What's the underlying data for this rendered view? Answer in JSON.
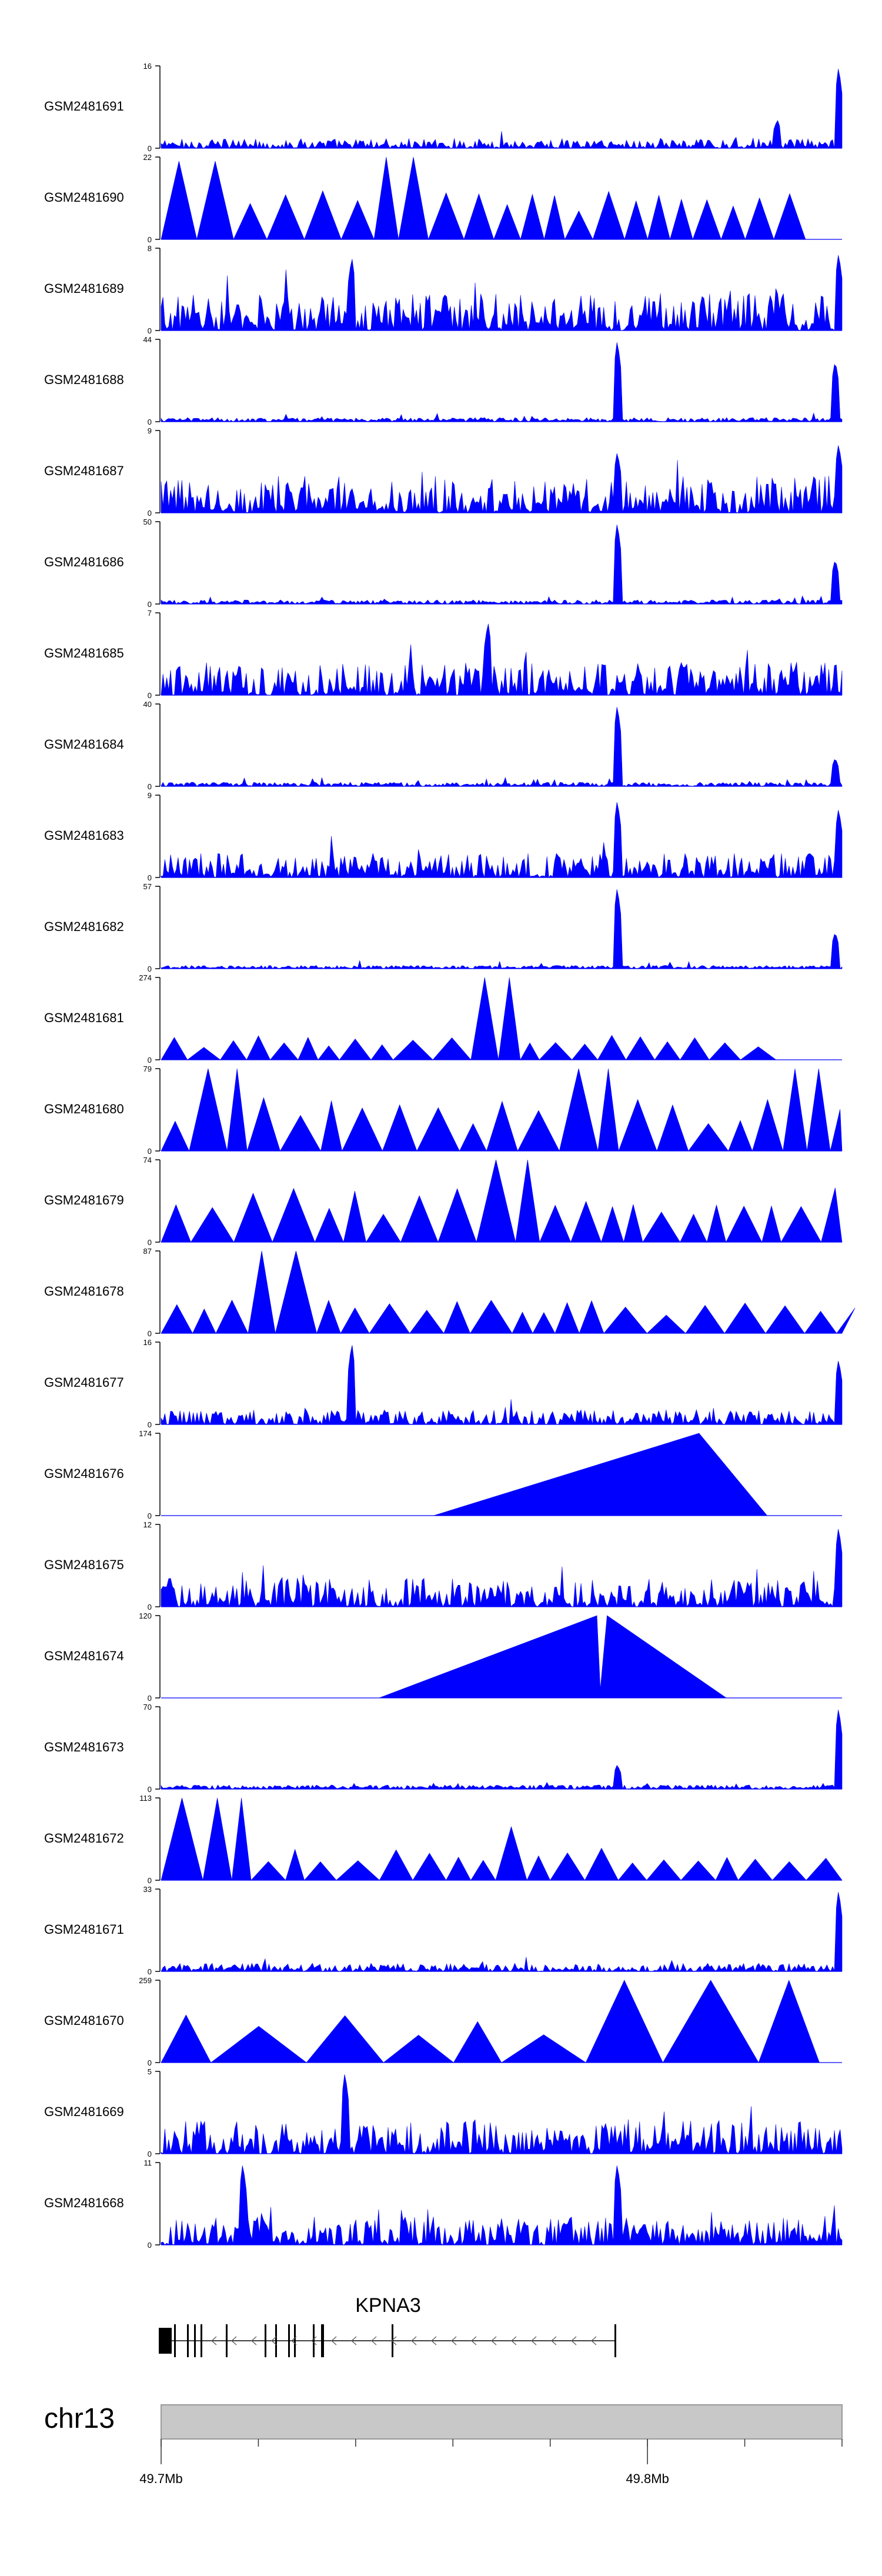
{
  "chart_data": {
    "type": "area",
    "chromosome": "chr13",
    "genomic_axis": {
      "range_mb": [
        49.7,
        49.84
      ],
      "tick_labels": [
        "49.7Mb",
        "49.8Mb"
      ],
      "tick_values_mb": [
        49.7,
        49.8
      ]
    },
    "tracks": [
      {
        "label": "GSM2481691",
        "ymax": 16,
        "ymin_label": "0",
        "pattern": "dense_noise",
        "level": 0.12,
        "peaks": [
          [
            0.905,
            0.35
          ],
          [
            0.995,
            1.0
          ]
        ]
      },
      {
        "label": "GSM2481690",
        "ymax": 22,
        "ymin_label": "0",
        "pattern": "triangles",
        "level": 0.5,
        "peaks": [
          [
            0.06,
            0.95
          ],
          [
            0.36,
            1.0
          ]
        ]
      },
      {
        "label": "GSM2481689",
        "ymax": 8,
        "ymin_label": "0",
        "pattern": "dense_noise",
        "level": 0.45,
        "peaks": [
          [
            0.28,
            0.9
          ],
          [
            0.995,
            0.95
          ]
        ]
      },
      {
        "label": "GSM2481688",
        "ymax": 44,
        "ymin_label": "0",
        "pattern": "sparse_noise",
        "level": 0.05,
        "peaks": [
          [
            0.67,
            1.0
          ],
          [
            0.99,
            0.75
          ]
        ]
      },
      {
        "label": "GSM2481687",
        "ymax": 9,
        "ymin_label": "0",
        "pattern": "dense_noise",
        "level": 0.45,
        "peaks": [
          [
            0.67,
            0.75
          ],
          [
            0.995,
            0.85
          ]
        ]
      },
      {
        "label": "GSM2481686",
        "ymax": 50,
        "ymin_label": "0",
        "pattern": "sparse_noise",
        "level": 0.05,
        "peaks": [
          [
            0.67,
            1.0
          ],
          [
            0.99,
            0.55
          ]
        ]
      },
      {
        "label": "GSM2481685",
        "ymax": 7,
        "ymin_label": "0",
        "pattern": "dense_noise",
        "level": 0.4,
        "peaks": [
          [
            0.48,
            0.9
          ]
        ]
      },
      {
        "label": "GSM2481684",
        "ymax": 40,
        "ymin_label": "0",
        "pattern": "sparse_noise",
        "level": 0.05,
        "peaks": [
          [
            0.67,
            1.0
          ],
          [
            0.99,
            0.35
          ]
        ]
      },
      {
        "label": "GSM2481683",
        "ymax": 9,
        "ymin_label": "0",
        "pattern": "dense_noise",
        "level": 0.3,
        "peaks": [
          [
            0.67,
            0.95
          ],
          [
            0.995,
            0.85
          ]
        ]
      },
      {
        "label": "GSM2481682",
        "ymax": 57,
        "ymin_label": "0",
        "pattern": "sparse_noise",
        "level": 0.04,
        "peaks": [
          [
            0.67,
            1.0
          ],
          [
            0.99,
            0.45
          ]
        ]
      },
      {
        "label": "GSM2481681",
        "ymax": 274,
        "ymin_label": "0",
        "pattern": "triangles",
        "level": 0.25,
        "peaks": [
          [
            0.49,
            1.0
          ]
        ]
      },
      {
        "label": "GSM2481680",
        "ymax": 79,
        "ymin_label": "0",
        "pattern": "triangles",
        "level": 0.55,
        "peaks": [
          [
            0.1,
            1.0
          ],
          [
            0.63,
            1.0
          ],
          [
            0.95,
            1.0
          ]
        ]
      },
      {
        "label": "GSM2481679",
        "ymax": 74,
        "ymin_label": "0",
        "pattern": "triangles",
        "level": 0.55,
        "peaks": [
          [
            0.52,
            1.0
          ]
        ]
      },
      {
        "label": "GSM2481678",
        "ymax": 87,
        "ymin_label": "0",
        "pattern": "triangles",
        "level": 0.35,
        "peaks": [
          [
            0.17,
            1.0
          ]
        ]
      },
      {
        "label": "GSM2481677",
        "ymax": 16,
        "ymin_label": "0",
        "pattern": "dense_noise",
        "level": 0.18,
        "peaks": [
          [
            0.28,
            1.0
          ],
          [
            0.995,
            0.8
          ]
        ]
      },
      {
        "label": "GSM2481676",
        "ymax": 174,
        "ymin_label": "0",
        "pattern": "single_triangle",
        "level": 1.0,
        "peaks": [
          [
            0.79,
            1.0
          ]
        ]
      },
      {
        "label": "GSM2481675",
        "ymax": 12,
        "ymin_label": "0",
        "pattern": "dense_noise",
        "level": 0.35,
        "peaks": [
          [
            0.995,
            0.98
          ]
        ]
      },
      {
        "label": "GSM2481674",
        "ymax": 120,
        "ymin_label": "0",
        "pattern": "double_triangle",
        "level": 1.0,
        "peaks": [
          [
            0.64,
            1.0
          ],
          [
            0.65,
            1.0
          ]
        ]
      },
      {
        "label": "GSM2481673",
        "ymax": 70,
        "ymin_label": "0",
        "pattern": "sparse_noise",
        "level": 0.05,
        "peaks": [
          [
            0.67,
            0.3
          ],
          [
            0.995,
            1.0
          ]
        ]
      },
      {
        "label": "GSM2481672",
        "ymax": 113,
        "ymin_label": "0",
        "pattern": "triangles",
        "level": 0.35,
        "peaks": [
          [
            0.09,
            1.0
          ],
          [
            0.51,
            0.65
          ]
        ]
      },
      {
        "label": "GSM2481671",
        "ymax": 33,
        "ymin_label": "0",
        "pattern": "dense_noise",
        "level": 0.1,
        "peaks": [
          [
            0.995,
            1.0
          ]
        ]
      },
      {
        "label": "GSM2481670",
        "ymax": 259,
        "ymin_label": "0",
        "pattern": "triangles_wide",
        "level": 0.5,
        "peaks": [
          [
            0.72,
            1.0
          ],
          [
            0.97,
            1.0
          ]
        ]
      },
      {
        "label": "GSM2481669",
        "ymax": 5,
        "ymin_label": "0",
        "pattern": "dense_noise",
        "level": 0.4,
        "peaks": [
          [
            0.27,
            1.0
          ]
        ]
      },
      {
        "label": "GSM2481668",
        "ymax": 11,
        "ymin_label": "0",
        "pattern": "dense_noise",
        "level": 0.35,
        "peaks": [
          [
            0.12,
            1.0
          ],
          [
            0.67,
            1.0
          ]
        ]
      }
    ],
    "gene": {
      "name": "KPNA3",
      "strand": "-",
      "start_mb": 49.7,
      "end_mb": 49.793
    }
  },
  "colors": {
    "signal": "#0000ff",
    "axis": "#000000",
    "ideogram": "#c8c8c8",
    "gene": "#000000"
  }
}
